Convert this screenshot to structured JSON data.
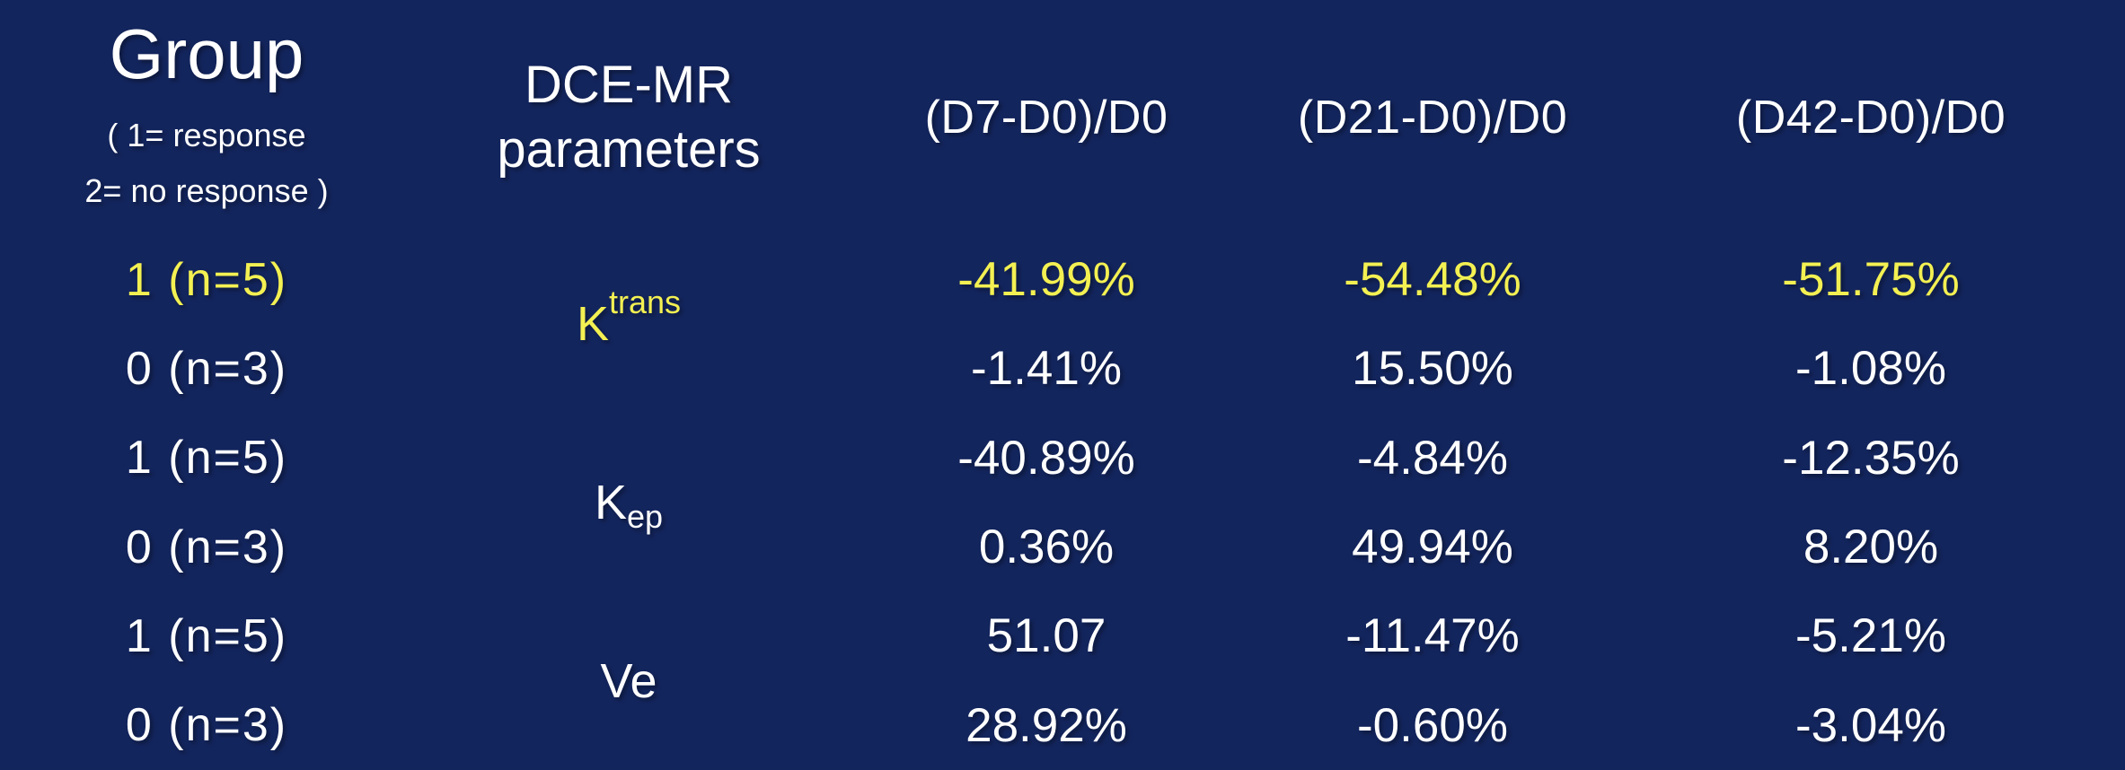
{
  "colors": {
    "background": "#13255d",
    "text_white": "#ffffff",
    "highlight_yellow": "#f3f052"
  },
  "header": {
    "group": {
      "title": "Group",
      "sub_line1": "( 1= response",
      "sub_line2": "2= no response )"
    },
    "parameters": {
      "line1": "DCE-MR",
      "line2": "parameters"
    },
    "columns": [
      "(D7-D0)/D0",
      "(D21-D0)/D0",
      "(D42-D0)/D0"
    ]
  },
  "parameters": [
    {
      "base": "K",
      "script": "trans",
      "script_type": "sup",
      "highlight": true
    },
    {
      "base": "K",
      "script": "ep",
      "script_type": "sub",
      "highlight": false
    },
    {
      "base": "Ve",
      "script": "",
      "script_type": "none",
      "highlight": false
    }
  ],
  "rows": [
    {
      "group": "1 (n=5)",
      "highlight": true,
      "values": [
        "-41.99%",
        "-54.48%",
        "-51.75%"
      ]
    },
    {
      "group": "0 (n=3)",
      "highlight": false,
      "values": [
        "-1.41%",
        "15.50%",
        "-1.08%"
      ]
    },
    {
      "group": "1 (n=5)",
      "highlight": false,
      "values": [
        "-40.89%",
        "-4.84%",
        "-12.35%"
      ]
    },
    {
      "group": "0 (n=3)",
      "highlight": false,
      "values": [
        "0.36%",
        "49.94%",
        "8.20%"
      ]
    },
    {
      "group": "1 (n=5)",
      "highlight": false,
      "values": [
        "51.07",
        "-11.47%",
        "-5.21%"
      ]
    },
    {
      "group": "0 (n=3)",
      "highlight": false,
      "values": [
        "28.92%",
        "-0.60%",
        "-3.04%"
      ]
    }
  ],
  "chart_data": {
    "type": "table",
    "title": "DCE-MR parameter percent change from baseline by response group",
    "columns": [
      "Group ( 1= response 2= no response )",
      "DCE-MR parameters",
      "(D7-D0)/D0",
      "(D21-D0)/D0",
      "(D42-D0)/D0"
    ],
    "rows": [
      [
        "1 (n=5)",
        "Ktrans",
        "-41.99%",
        "-54.48%",
        "-51.75%"
      ],
      [
        "0 (n=3)",
        "Ktrans",
        "-1.41%",
        "15.50%",
        "-1.08%"
      ],
      [
        "1 (n=5)",
        "Kep",
        "-40.89%",
        "-4.84%",
        "-12.35%"
      ],
      [
        "0 (n=3)",
        "Kep",
        "0.36%",
        "49.94%",
        "8.20%"
      ],
      [
        "1 (n=5)",
        "Ve",
        "51.07",
        "-11.47%",
        "-5.21%"
      ],
      [
        "0 (n=3)",
        "Ve",
        "28.92%",
        "-0.60%",
        "-3.04%"
      ]
    ],
    "highlighted_cells": "row 1 group label, row 1 values, and Ktrans label are yellow; all other text white",
    "layout": "merged parameter cells: Ktrans spans data rows 1-2, Kep spans rows 3-4, Ve spans rows 5-6"
  }
}
